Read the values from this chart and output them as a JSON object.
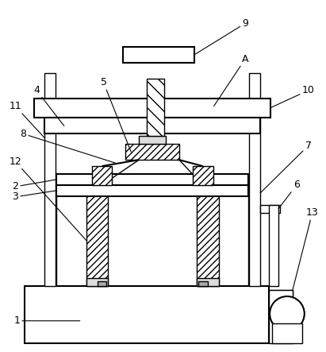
{
  "background_color": "#ffffff",
  "line_color": "#000000",
  "fig_width": 4.11,
  "fig_height": 4.43,
  "dpi": 100
}
